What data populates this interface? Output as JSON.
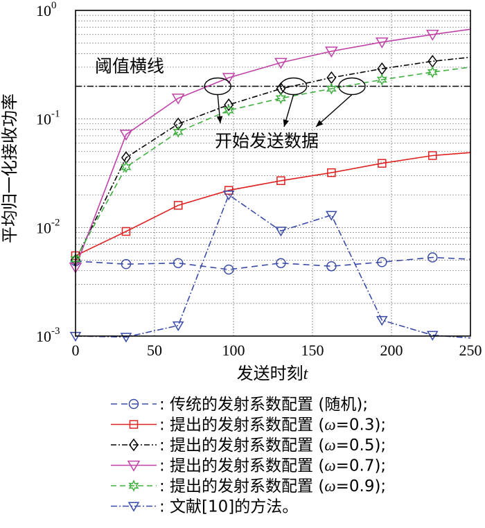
{
  "chart_data": {
    "type": "line",
    "xlabel": "发送时刻",
    "xlabel_var": "t",
    "ylabel": "平均归一化接收功率",
    "xlim": [
      0,
      250
    ],
    "ylim": [
      0.001,
      1
    ],
    "yscale": "log",
    "grid": true,
    "x_ticks": [
      "0",
      "50",
      "100",
      "150",
      "200",
      "250"
    ],
    "y_ticks": [
      {
        "base": "10",
        "exp": "0",
        "value": 1
      },
      {
        "base": "10",
        "exp": "-1",
        "value": 0.1
      },
      {
        "base": "10",
        "exp": "-2",
        "value": 0.01
      },
      {
        "base": "10",
        "exp": "-3",
        "value": 0.001
      }
    ],
    "threshold": {
      "label": "阈值横线",
      "value": 0.2
    },
    "annotation": "开始发送数据",
    "annotation_points": [
      [
        90,
        0.2
      ],
      [
        138,
        0.2
      ],
      [
        175,
        0.2
      ]
    ],
    "legend_position": "bottom",
    "series": [
      {
        "name": "传统的发射系数配置 (随机)",
        "legend_prefix": ": 传统的发射系数配置 (随机);",
        "legend_suffix": "",
        "color": "#3a4aa8",
        "dash": "9,6",
        "marker": "circle",
        "x": [
          0,
          32,
          65,
          97,
          130,
          162,
          194,
          226,
          250
        ],
        "y": [
          0.0049,
          0.0046,
          0.0047,
          0.0041,
          0.0047,
          0.0044,
          0.0048,
          0.0053,
          0.0051
        ]
      },
      {
        "name": "提出的发射系数配置 (ω=0.3)",
        "legend_prefix": ": 提出的发射系数配置 (",
        "legend_omega": "ω",
        "legend_suffix": "=0.3);",
        "color": "#e02020",
        "dash": "",
        "marker": "square",
        "x": [
          0,
          32,
          65,
          97,
          130,
          162,
          194,
          226,
          250
        ],
        "y": [
          0.0055,
          0.0092,
          0.016,
          0.022,
          0.027,
          0.032,
          0.039,
          0.046,
          0.049
        ]
      },
      {
        "name": "提出的发射系数配置 (ω=0.5)",
        "legend_prefix": ": 提出的发射系数配置 (",
        "legend_omega": "ω",
        "legend_suffix": "=0.5);",
        "color": "#000000",
        "dash": "8,3,2,3",
        "marker": "diamond",
        "x": [
          0,
          32,
          65,
          97,
          130,
          162,
          194,
          226,
          250
        ],
        "y": [
          0.005,
          0.044,
          0.09,
          0.135,
          0.19,
          0.24,
          0.29,
          0.34,
          0.37
        ]
      },
      {
        "name": "提出的发射系数配置 (ω=0.7)",
        "legend_prefix": ": 提出的发射系数配置 (",
        "legend_omega": "ω",
        "legend_suffix": "=0.7);",
        "color": "#c040a8",
        "dash": "",
        "marker": "triangle-down",
        "x": [
          0,
          32,
          65,
          97,
          130,
          162,
          194,
          226,
          250
        ],
        "y": [
          0.0043,
          0.072,
          0.155,
          0.24,
          0.33,
          0.42,
          0.51,
          0.6,
          0.67
        ]
      },
      {
        "name": "提出的发射系数配置 (ω=0.9)",
        "legend_prefix": ": 提出的发射系数配置 (",
        "legend_omega": "ω",
        "legend_suffix": "=0.9);",
        "color": "#40b040",
        "dash": "8,5",
        "marker": "star",
        "x": [
          0,
          32,
          65,
          97,
          130,
          162,
          194,
          226,
          250
        ],
        "y": [
          0.0051,
          0.036,
          0.076,
          0.12,
          0.155,
          0.19,
          0.23,
          0.27,
          0.3
        ]
      },
      {
        "name": "文献[10]的方法",
        "legend_prefix": ": 文献[10]的方法。",
        "legend_suffix": "",
        "color": "#3a4aa8",
        "dash": "9,3,2,3",
        "marker": "triangle-down-small",
        "x": [
          0,
          32,
          65,
          97,
          130,
          162,
          194,
          226,
          250
        ],
        "y": [
          0.001,
          0.00098,
          0.00125,
          0.02,
          0.0093,
          0.013,
          0.0014,
          0.00102,
          0.00096
        ]
      }
    ]
  }
}
